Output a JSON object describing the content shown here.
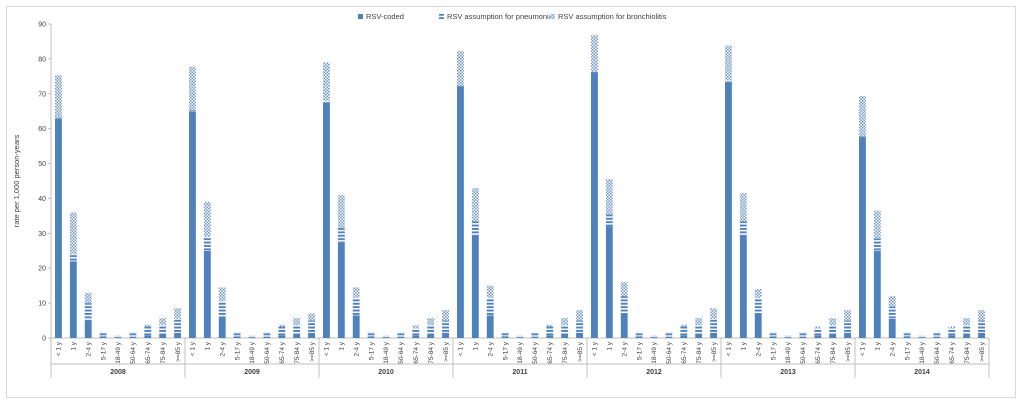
{
  "chart_data": {
    "type": "bar",
    "stacked": true,
    "ylabel": "rate per 1,000 person-years",
    "ylim": [
      0,
      90
    ],
    "yticks": [
      0,
      10,
      20,
      30,
      40,
      50,
      60,
      70,
      80,
      90
    ],
    "legend_position": "top-center",
    "grid": false,
    "groups": [
      "2008",
      "2009",
      "2010",
      "2011",
      "2012",
      "2013",
      "2014"
    ],
    "categories": [
      "< 1 y",
      "1 y",
      "2-4 y",
      "5-17 y",
      "18-49 y",
      "50-64 y",
      "65-74 y",
      "75-84 y",
      ">=85 y"
    ],
    "series": [
      {
        "name": "RSV-coded",
        "color": "#4f81bd",
        "pattern": "solid",
        "values": [
          [
            63,
            22,
            5,
            0.5,
            0.2,
            0.4,
            0.8,
            1.2,
            1.5
          ],
          [
            65,
            25,
            6,
            0.5,
            0.2,
            0.4,
            0.8,
            1.2,
            1.5
          ],
          [
            67.5,
            27.5,
            6.5,
            0.5,
            0.2,
            0.4,
            0.8,
            1.2,
            1.5
          ],
          [
            72,
            29.5,
            6.5,
            0.5,
            0.2,
            0.4,
            0.8,
            1.2,
            1.5
          ],
          [
            76,
            32,
            7,
            0.5,
            0.2,
            0.4,
            0.8,
            1.2,
            1.5
          ],
          [
            73.5,
            29.5,
            7,
            0.5,
            0.2,
            0.4,
            0.8,
            1.2,
            1.5
          ],
          [
            57.5,
            25,
            5.5,
            0.5,
            0.2,
            0.4,
            0.8,
            1.2,
            1.5
          ]
        ]
      },
      {
        "name": "RSV assumption for pneumonia",
        "color": "#4f81bd",
        "pattern": "dashed",
        "values": [
          [
            0.3,
            2,
            5,
            1,
            0.5,
            1.2,
            2.5,
            2.5,
            4
          ],
          [
            0.3,
            4,
            4.5,
            1,
            0.5,
            1.2,
            2.5,
            2.5,
            3.5
          ],
          [
            0.5,
            4,
            5,
            1,
            0.5,
            1.2,
            2,
            2.5,
            3.5
          ],
          [
            0.3,
            4,
            5,
            1,
            0.5,
            1.2,
            2.5,
            2.5,
            3.5
          ],
          [
            0.3,
            3.5,
            5,
            1,
            0.5,
            1.2,
            2.5,
            2.5,
            4
          ],
          [
            0.3,
            4,
            4.5,
            1,
            0.5,
            1.2,
            2,
            2.5,
            3.5
          ],
          [
            0.3,
            3.5,
            3.5,
            1,
            0.5,
            1.2,
            2,
            2.5,
            3.5
          ]
        ]
      },
      {
        "name": "RSV assumption for bronchiolitis",
        "color": "#4f81bd",
        "pattern": "checkered",
        "values": [
          [
            12,
            12,
            3,
            0.1,
            0.1,
            0.1,
            0.5,
            2,
            3
          ],
          [
            12.5,
            10,
            4,
            0.1,
            0.1,
            0.1,
            0.5,
            2,
            2
          ],
          [
            11,
            9.5,
            3,
            0.1,
            0.1,
            0.1,
            0.8,
            2,
            3
          ],
          [
            10,
            9.5,
            3.5,
            0.1,
            0.1,
            0.1,
            0.5,
            2,
            3
          ],
          [
            10.5,
            10,
            4,
            0.1,
            0.1,
            0.1,
            0.5,
            2,
            3
          ],
          [
            10,
            8,
            2.5,
            0.1,
            0.1,
            0.1,
            0.5,
            2,
            3
          ],
          [
            11.5,
            8,
            3,
            0.1,
            0.1,
            0.1,
            0.5,
            2,
            3
          ]
        ]
      }
    ]
  }
}
